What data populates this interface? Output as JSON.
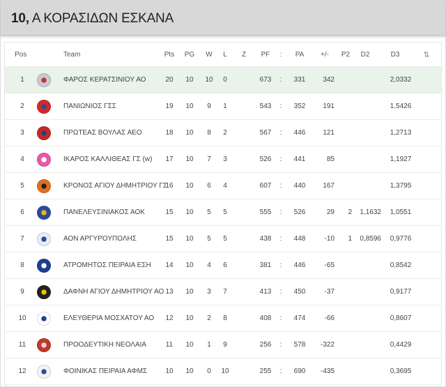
{
  "header": {
    "number": "10,",
    "title": " Α ΚΟΡΑΣΙΔΩΝ ΕΣΚΑΝΑ"
  },
  "table": {
    "columns": {
      "pos": "Pos",
      "team": "Team",
      "pts": "Pts",
      "pg": "PG",
      "w": "W",
      "l": "L",
      "z": "Z",
      "pf": "PF",
      "sep": ":",
      "pa": "PA",
      "diff": "+/-",
      "p2": "P2",
      "d2": "D2",
      "d3": "D3",
      "sort_icon": "⇅"
    },
    "rows": [
      {
        "pos": "1",
        "team": "ΦΑΡΟΣ ΚΕΡΑΤΣΙΝΙΟΥ ΑΟ",
        "pts": "20",
        "pg": "10",
        "w": "10",
        "l": "0",
        "z": "",
        "pf": "673",
        "sep": ":",
        "pa": "331",
        "diff": "342",
        "p2": "",
        "d2": "",
        "d3": "2,0332",
        "logo_color": "#c9c9d6",
        "logo_accent": "#c0392b",
        "highlight": true
      },
      {
        "pos": "2",
        "team": "ΠΑΝΙΩΝΙΟΣ ΓΣΣ",
        "pts": "19",
        "pg": "10",
        "w": "9",
        "l": "1",
        "z": "",
        "pf": "543",
        "sep": ":",
        "pa": "352",
        "diff": "191",
        "p2": "",
        "d2": "",
        "d3": "1,5426",
        "logo_color": "#d62828",
        "logo_accent": "#2b4a9b",
        "highlight": false
      },
      {
        "pos": "3",
        "team": "ΠΡΩΤΕΑΣ ΒΟΥΛΑΣ ΑΕΟ",
        "pts": "18",
        "pg": "10",
        "w": "8",
        "l": "2",
        "z": "",
        "pf": "567",
        "sep": ":",
        "pa": "446",
        "diff": "121",
        "p2": "",
        "d2": "",
        "d3": "1,2713",
        "logo_color": "#c62828",
        "logo_accent": "#1e3f8f",
        "highlight": false
      },
      {
        "pos": "4",
        "team": "ΙΚΑΡΟΣ ΚΑΛΛΙΘΕΑΣ ΓΣ (w)",
        "pts": "17",
        "pg": "10",
        "w": "7",
        "l": "3",
        "z": "",
        "pf": "526",
        "sep": ":",
        "pa": "441",
        "diff": "85",
        "p2": "",
        "d2": "",
        "d3": "1,1927",
        "logo_color": "#e85aa8",
        "logo_accent": "#ffffff",
        "highlight": false
      },
      {
        "pos": "5",
        "team": "ΚΡΟΝΟΣ ΑΓΙΟΥ ΔΗΜΗΤΡΙΟΥ ΓΣ",
        "pts": "16",
        "pg": "10",
        "w": "6",
        "l": "4",
        "z": "",
        "pf": "607",
        "sep": ":",
        "pa": "440",
        "diff": "167",
        "p2": "",
        "d2": "",
        "d3": "1,3795",
        "logo_color": "#e2701f",
        "logo_accent": "#222222",
        "highlight": false
      },
      {
        "pos": "6",
        "team": "ΠΑΝΕΛΕΥΣΙΝΙΑΚΟΣ ΑΟΚ",
        "pts": "15",
        "pg": "10",
        "w": "5",
        "l": "5",
        "z": "",
        "pf": "555",
        "sep": ":",
        "pa": "526",
        "diff": "29",
        "p2": "2",
        "d2": "1,1632",
        "d3": "1,0551",
        "logo_color": "#2b4a9b",
        "logo_accent": "#f2b705",
        "highlight": false
      },
      {
        "pos": "7",
        "team": "ΑΟΝ ΑΡΓΥΡΟΥΠΟΛΗΣ",
        "pts": "15",
        "pg": "10",
        "w": "5",
        "l": "5",
        "z": "",
        "pf": "438",
        "sep": ":",
        "pa": "448",
        "diff": "-10",
        "p2": "1",
        "d2": "0,8596",
        "d3": "0,9776",
        "logo_color": "#e8eef8",
        "logo_accent": "#2b4a9b",
        "highlight": false
      },
      {
        "pos": "8",
        "team": "ΑΤΡΟΜΗΤΟΣ ΠΕΙΡΑΙΑ ΕΣΗ",
        "pts": "14",
        "pg": "10",
        "w": "4",
        "l": "6",
        "z": "",
        "pf": "381",
        "sep": ":",
        "pa": "446",
        "diff": "-65",
        "p2": "",
        "d2": "",
        "d3": "0,8542",
        "logo_color": "#1e3f8f",
        "logo_accent": "#ffffff",
        "highlight": false
      },
      {
        "pos": "9",
        "team": "ΔΑΦΝΗ ΑΓΙΟΥ ΔΗΜΗΤΡΙΟΥ ΑΟ",
        "pts": "13",
        "pg": "10",
        "w": "3",
        "l": "7",
        "z": "",
        "pf": "413",
        "sep": ":",
        "pa": "450",
        "diff": "-37",
        "p2": "",
        "d2": "",
        "d3": "0,9177",
        "logo_color": "#222222",
        "logo_accent": "#f2c200",
        "highlight": false
      },
      {
        "pos": "10",
        "team": "ΕΛΕΥΘΕΡΙΑ ΜΟΣΧΑΤΟΥ ΑΟ",
        "pts": "12",
        "pg": "10",
        "w": "2",
        "l": "8",
        "z": "",
        "pf": "408",
        "sep": ":",
        "pa": "474",
        "diff": "-66",
        "p2": "",
        "d2": "",
        "d3": "0,8607",
        "logo_color": "#ffffff",
        "logo_accent": "#1e3f8f",
        "highlight": false
      },
      {
        "pos": "11",
        "team": "ΠΡΟΟΔΕΥΤΙΚΗ ΝΕΟΛΑΙΑ",
        "pts": "11",
        "pg": "10",
        "w": "1",
        "l": "9",
        "z": "",
        "pf": "256",
        "sep": ":",
        "pa": "578",
        "diff": "-322",
        "p2": "",
        "d2": "",
        "d3": "0,4429",
        "logo_color": "#c0392b",
        "logo_accent": "#f1d4d4",
        "highlight": false
      },
      {
        "pos": "12",
        "team": "ΦΟΙΝΙΚΑΣ ΠΕΙΡΑΙΑ ΑΦΜΣ",
        "pts": "10",
        "pg": "10",
        "w": "0",
        "l": "10",
        "z": "",
        "pf": "255",
        "sep": ":",
        "pa": "690",
        "diff": "-435",
        "p2": "",
        "d2": "",
        "d3": "0,3695",
        "logo_color": "#f4f4f4",
        "logo_accent": "#2b4a9b",
        "highlight": false
      }
    ]
  }
}
